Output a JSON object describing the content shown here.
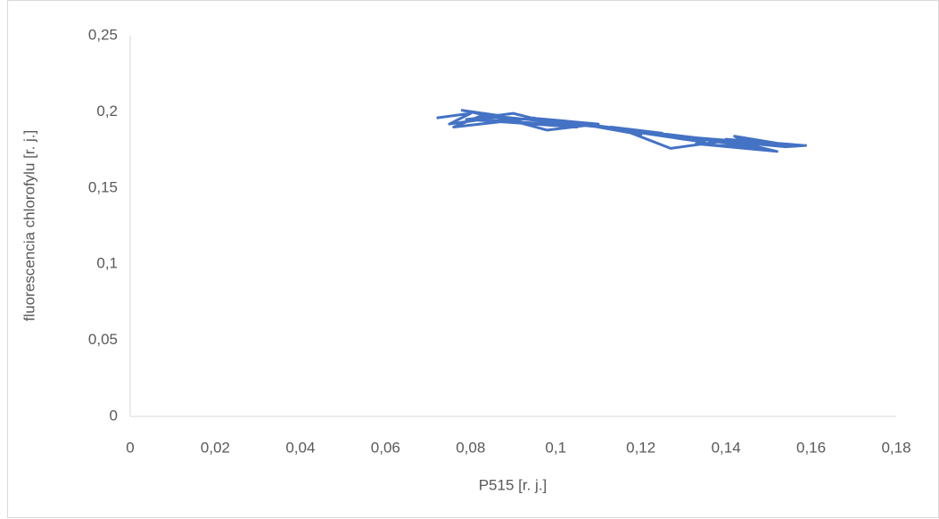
{
  "chart_data": {
    "type": "line",
    "x_label": "P515 [r. j.]",
    "y_label": "fluorescencia chlorofylu [r. j.]",
    "x": [
      0.072,
      0.08,
      0.075,
      0.088,
      0.078,
      0.092,
      0.083,
      0.076,
      0.095,
      0.085,
      0.1,
      0.09,
      0.079,
      0.105,
      0.094,
      0.11,
      0.098,
      0.086,
      0.115,
      0.104,
      0.12,
      0.108,
      0.096,
      0.125,
      0.113,
      0.13,
      0.118,
      0.106,
      0.135,
      0.122,
      0.14,
      0.127,
      0.115,
      0.145,
      0.132,
      0.15,
      0.137,
      0.124,
      0.155,
      0.142,
      0.148,
      0.133,
      0.152,
      0.14,
      0.158,
      0.146,
      0.128,
      0.154,
      0.159
    ],
    "series": [
      {
        "color": "#4472c4",
        "values": [
          0.196,
          0.199,
          0.192,
          0.197,
          0.201,
          0.193,
          0.198,
          0.19,
          0.196,
          0.194,
          0.192,
          0.199,
          0.195,
          0.19,
          0.196,
          0.192,
          0.188,
          0.197,
          0.189,
          0.193,
          0.185,
          0.191,
          0.194,
          0.186,
          0.19,
          0.182,
          0.188,
          0.192,
          0.18,
          0.186,
          0.181,
          0.176,
          0.189,
          0.179,
          0.183,
          0.175,
          0.181,
          0.185,
          0.178,
          0.184,
          0.176,
          0.179,
          0.174,
          0.182,
          0.178,
          0.18,
          0.184,
          0.177,
          0.178
        ]
      }
    ],
    "xlim": [
      0,
      0.18
    ],
    "xticks": [
      0,
      {
        "value": 0.02,
        "label": "0,02"
      },
      {
        "value": 0.04,
        "label": "0,04"
      },
      {
        "value": 0.06,
        "label": "0,06"
      },
      {
        "value": 0.08,
        "label": "0,08"
      },
      {
        "value": 0.1,
        "label": "0,1"
      },
      {
        "value": 0.12,
        "label": "0,12"
      },
      {
        "value": 0.14,
        "label": "0,14"
      },
      {
        "value": 0.16,
        "label": "0,16"
      },
      {
        "value": 0.18,
        "label": "0,18"
      }
    ],
    "ylim": [
      0,
      0.25
    ],
    "yticks": [
      0,
      {
        "value": 0.05,
        "label": "0,05"
      },
      {
        "value": 0.1,
        "label": "0,1"
      },
      {
        "value": 0.15,
        "label": "0,15"
      },
      {
        "value": 0.2,
        "label": "0,2"
      },
      {
        "value": 0.25,
        "label": "0,25"
      }
    ],
    "grid": false
  }
}
